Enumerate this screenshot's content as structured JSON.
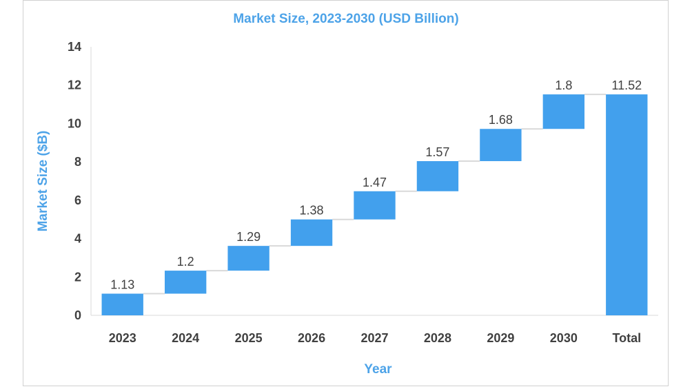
{
  "chart_data": {
    "type": "waterfall",
    "title": "Market Size, 2023-2030 (USD Billion)",
    "xlabel": "Year",
    "ylabel": "Market Size ($B)",
    "ylim": [
      0,
      14
    ],
    "yticks": [
      "0",
      "2",
      "4",
      "6",
      "8",
      "10",
      "12",
      "14"
    ],
    "categories": [
      "2023",
      "2024",
      "2025",
      "2026",
      "2027",
      "2028",
      "2029",
      "2030",
      "Total"
    ],
    "values": [
      1.13,
      1.2,
      1.29,
      1.38,
      1.47,
      1.57,
      1.68,
      1.8,
      11.52
    ],
    "labels": [
      "1.13",
      "1.2",
      "1.29",
      "1.38",
      "1.47",
      "1.57",
      "1.68",
      "1.8",
      "11.52"
    ],
    "bar_color": "#42a0ed",
    "connector_color": "#d9d9d9",
    "grid": false,
    "legend": "none"
  }
}
